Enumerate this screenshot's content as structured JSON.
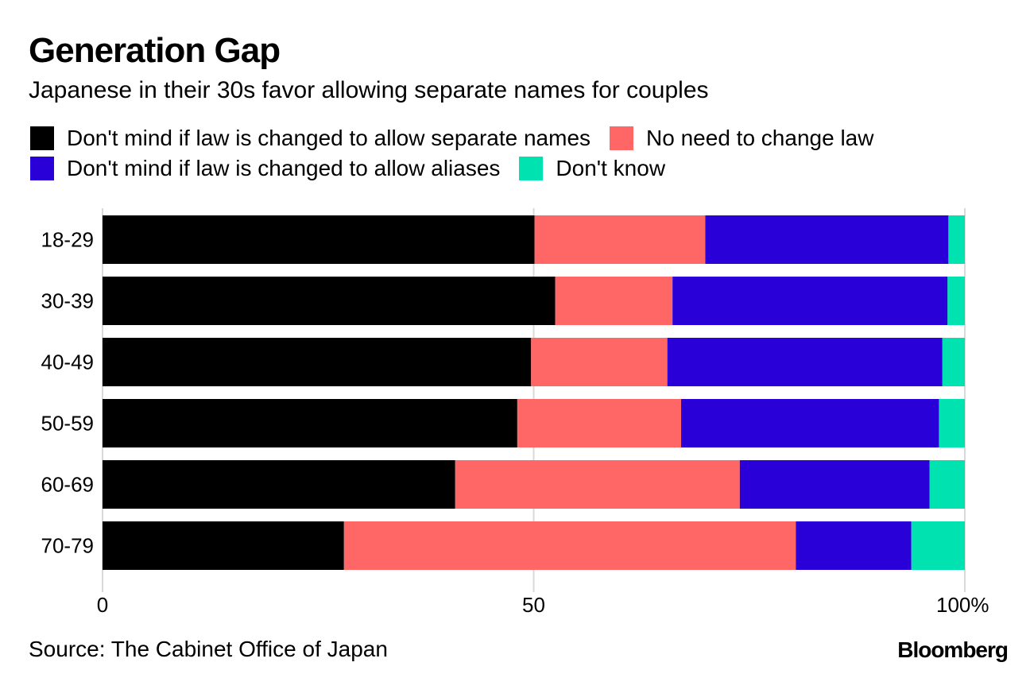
{
  "title": "Generation Gap",
  "subtitle": "Japanese in their 30s favor allowing separate names for couples",
  "source": "Source: The Cabinet Office of Japan",
  "logo_text": "Bloomberg",
  "chart_data": {
    "type": "bar",
    "orientation": "horizontal",
    "stacked": true,
    "categories": [
      "18-29",
      "30-39",
      "40-49",
      "50-59",
      "60-69",
      "70-79"
    ],
    "series": [
      {
        "name": "Don't mind if law is changed to allow separate names",
        "color": "#000000",
        "values": [
          50.1,
          52.5,
          49.7,
          48.1,
          40.9,
          28.0
        ]
      },
      {
        "name": "No need to change law",
        "color": "#ff6666",
        "values": [
          19.8,
          13.6,
          15.8,
          19.0,
          33.0,
          52.4
        ]
      },
      {
        "name": "Don't mind if law is changed to allow aliases",
        "color": "#2a00d9",
        "values": [
          28.2,
          31.9,
          31.9,
          29.9,
          22.0,
          13.4
        ]
      },
      {
        "name": "Don't know",
        "color": "#00e3b0",
        "values": [
          2.0,
          2.0,
          2.6,
          3.0,
          4.1,
          6.5
        ]
      }
    ],
    "xlim": [
      0,
      100
    ],
    "xticks": [
      "0",
      "50",
      "100%"
    ],
    "xtick_values": [
      0,
      50,
      100
    ],
    "grid": true,
    "legend_position": "top"
  }
}
